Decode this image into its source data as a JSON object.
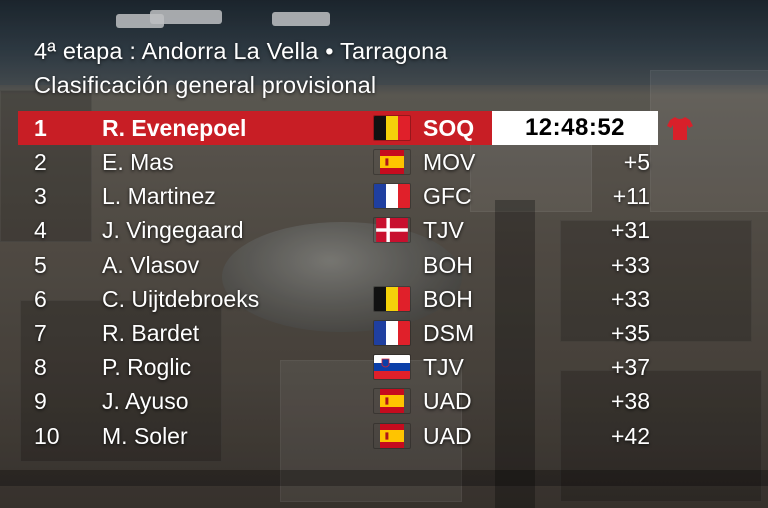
{
  "header": {
    "stage": "4ª etapa : Andorra La Vella • Tarragona",
    "subtitle": "Clasificación general provisional"
  },
  "colors": {
    "leader_bar": "#c81e25",
    "time_box": "#ffffff",
    "jersey": "#d8202a"
  },
  "standings": [
    {
      "pos": "1",
      "name": "R. Evenepoel",
      "flag": "belgium-flag",
      "team": "SOQ",
      "time": "12:48:52"
    },
    {
      "pos": "2",
      "name": "E. Mas",
      "flag": "spain-flag",
      "team": "MOV",
      "time": "+5"
    },
    {
      "pos": "3",
      "name": "L. Martinez",
      "flag": "france-flag",
      "team": "GFC",
      "time": "+11"
    },
    {
      "pos": "4",
      "name": "J. Vingegaard",
      "flag": "denmark-flag",
      "team": "TJV",
      "time": "+31"
    },
    {
      "pos": "5",
      "name": "A. Vlasov",
      "flag": "",
      "team": "BOH",
      "time": "+33"
    },
    {
      "pos": "6",
      "name": "C. Uijtdebroeks",
      "flag": "belgium-flag",
      "team": "BOH",
      "time": "+33"
    },
    {
      "pos": "7",
      "name": "R. Bardet",
      "flag": "france-flag",
      "team": "DSM",
      "time": "+35"
    },
    {
      "pos": "8",
      "name": "P. Roglic",
      "flag": "slovenia-flag",
      "team": "TJV",
      "time": "+37"
    },
    {
      "pos": "9",
      "name": "J. Ayuso",
      "flag": "spain-flag",
      "team": "UAD",
      "time": "+38"
    },
    {
      "pos": "10",
      "name": "M. Soler",
      "flag": "spain-flag",
      "team": "UAD",
      "time": "+42"
    }
  ]
}
